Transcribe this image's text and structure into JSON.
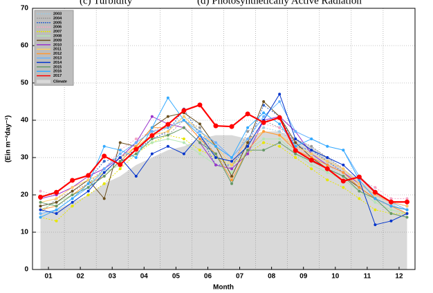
{
  "chart_data": {
    "type": "line",
    "panel_titles": [
      "(c) Turbidity",
      "(d) Photosynthetically Active Radiation"
    ],
    "y_label": "(Ein m⁻²day⁻¹)",
    "x_label": "Month",
    "x": [
      0.75,
      1.25,
      1.75,
      2.25,
      2.75,
      3.25,
      3.75,
      4.25,
      4.75,
      5.25,
      5.75,
      6.25,
      6.75,
      7.25,
      7.75,
      8.25,
      8.75,
      9.25,
      9.75,
      10.25,
      10.75,
      11.25,
      11.75,
      12.25
    ],
    "xlim": [
      0.5,
      12.5
    ],
    "xticks": [
      {
        "value": 1,
        "label": "01"
      },
      {
        "value": 2,
        "label": "02"
      },
      {
        "value": 3,
        "label": "03"
      },
      {
        "value": 4,
        "label": "04"
      },
      {
        "value": 5,
        "label": "05"
      },
      {
        "value": 6,
        "label": "06"
      },
      {
        "value": 7,
        "label": "07"
      },
      {
        "value": 8,
        "label": "08"
      },
      {
        "value": 9,
        "label": "09"
      },
      {
        "value": 10,
        "label": "10"
      },
      {
        "value": 11,
        "label": "11"
      },
      {
        "value": 12,
        "label": "12"
      }
    ],
    "ylim": [
      0,
      70
    ],
    "yticks": [
      0,
      10,
      20,
      30,
      40,
      50,
      60,
      70
    ],
    "grid": true,
    "legend": "top-left",
    "climate": {
      "name": "Climate",
      "color": "#d9d9d9",
      "values": [
        15,
        16,
        18,
        20,
        23,
        25,
        28,
        30,
        32,
        33,
        35,
        36,
        36,
        35,
        37,
        37,
        35,
        33,
        30,
        27,
        24,
        21,
        18,
        15
      ]
    },
    "series": [
      {
        "name": "2003",
        "color": "#9ecae1",
        "dash": true,
        "values": [
          16,
          17,
          19,
          22,
          26,
          29,
          33,
          36,
          38,
          41,
          39,
          33,
          30,
          35,
          38,
          37,
          34,
          31,
          28,
          25,
          22,
          19,
          17,
          16
        ]
      },
      {
        "name": "2004",
        "color": "#999999",
        "dash": true,
        "values": [
          15,
          19,
          21,
          23,
          27,
          31,
          34,
          37,
          36,
          40,
          38,
          30,
          27,
          37,
          40,
          38,
          35,
          33,
          30,
          27,
          23,
          20,
          18,
          17
        ]
      },
      {
        "name": "2005",
        "color": "#3366cc",
        "dash": true,
        "values": [
          17,
          18,
          21,
          24,
          29,
          30,
          32,
          35,
          37,
          43,
          36,
          28,
          28,
          33,
          44,
          41,
          33,
          32,
          29,
          26,
          22,
          19,
          17,
          16
        ]
      },
      {
        "name": "2006",
        "color": "#f4a6c6",
        "dash": true,
        "values": [
          21,
          20,
          22,
          25,
          27,
          32,
          35,
          37,
          39,
          38,
          36,
          34,
          29,
          35,
          39,
          38,
          33,
          30,
          27,
          28,
          24,
          22,
          19,
          19
        ]
      },
      {
        "name": "2007",
        "color": "#e6e600",
        "dash": true,
        "values": [
          14,
          13,
          17,
          20,
          23,
          27,
          31,
          34,
          36,
          35,
          32,
          30,
          28,
          31,
          34,
          33,
          30,
          27,
          24,
          22,
          19,
          16,
          15,
          15
        ]
      },
      {
        "name": "2008",
        "color": "#b3e6b3",
        "dash": false,
        "values": [
          16,
          18,
          20,
          23,
          26,
          28,
          32,
          34,
          35,
          34,
          31,
          28,
          26,
          32,
          35,
          35,
          31,
          28,
          26,
          24,
          21,
          18,
          16,
          15
        ]
      },
      {
        "name": "2009",
        "color": "#6b4f1d",
        "dash": false,
        "values": [
          17,
          18,
          21,
          24,
          19,
          34,
          33,
          38,
          41,
          42,
          39,
          33,
          25,
          34,
          45,
          41,
          34,
          30,
          27,
          25,
          22,
          19,
          17,
          16
        ]
      },
      {
        "name": "2010",
        "color": "#9933cc",
        "dash": false,
        "values": [
          19,
          20,
          22,
          25,
          27,
          30,
          34,
          41,
          39,
          38,
          34,
          28,
          27,
          31,
          40,
          41,
          37,
          31,
          28,
          26,
          23,
          20,
          18,
          17
        ]
      },
      {
        "name": "2011",
        "color": "#ffcc66",
        "dash": false,
        "values": [
          18,
          19,
          22,
          24,
          26,
          30,
          33,
          36,
          37,
          41,
          37,
          33,
          28,
          35,
          37,
          36,
          33,
          31,
          29,
          27,
          23,
          20,
          18,
          17
        ]
      },
      {
        "name": "2012",
        "color": "#ff9933",
        "dash": false,
        "values": [
          16,
          17,
          20,
          23,
          25,
          29,
          33,
          38,
          38,
          40,
          35,
          31,
          24,
          32,
          37,
          36,
          32,
          30,
          28,
          26,
          22,
          19,
          17,
          15
        ]
      },
      {
        "name": "2013",
        "color": "#66b3ff",
        "dash": false,
        "values": [
          15,
          16,
          19,
          22,
          27,
          31,
          34,
          37,
          38,
          40,
          37,
          34,
          30,
          35,
          41,
          45,
          37,
          35,
          33,
          32,
          25,
          21,
          18,
          16
        ]
      },
      {
        "name": "2014",
        "color": "#0033cc",
        "dash": false,
        "values": [
          16,
          15,
          18,
          21,
          26,
          30,
          25,
          31,
          33,
          31,
          36,
          30,
          29,
          33,
          40,
          47,
          35,
          32,
          30,
          28,
          24,
          12,
          13,
          15
        ]
      },
      {
        "name": "2015",
        "color": "#669966",
        "dash": false,
        "values": [
          18,
          17,
          20,
          22,
          25,
          29,
          31,
          35,
          36,
          38,
          34,
          31,
          23,
          32,
          32,
          34,
          31,
          29,
          27,
          25,
          21,
          19,
          15,
          14
        ]
      },
      {
        "name": "2016",
        "color": "#33aaff",
        "dash": false,
        "values": [
          14,
          16,
          19,
          23,
          33,
          32,
          30,
          38,
          46,
          40,
          36,
          33,
          30,
          38,
          42,
          39,
          33,
          35,
          33,
          32,
          24,
          19,
          17,
          16
        ]
      },
      {
        "name": "2017",
        "color": "#ff0000",
        "dash": false,
        "values": [
          19.4,
          20.7,
          23.9,
          25.2,
          30.4,
          28.1,
          32.2,
          35.9,
          38.9,
          42.6,
          44.1,
          38.5,
          38.3,
          41.7,
          39.4,
          40.7,
          31.9,
          29.3,
          27.0,
          23.7,
          24.8,
          20.7,
          18.1,
          18.1
        ]
      }
    ]
  }
}
